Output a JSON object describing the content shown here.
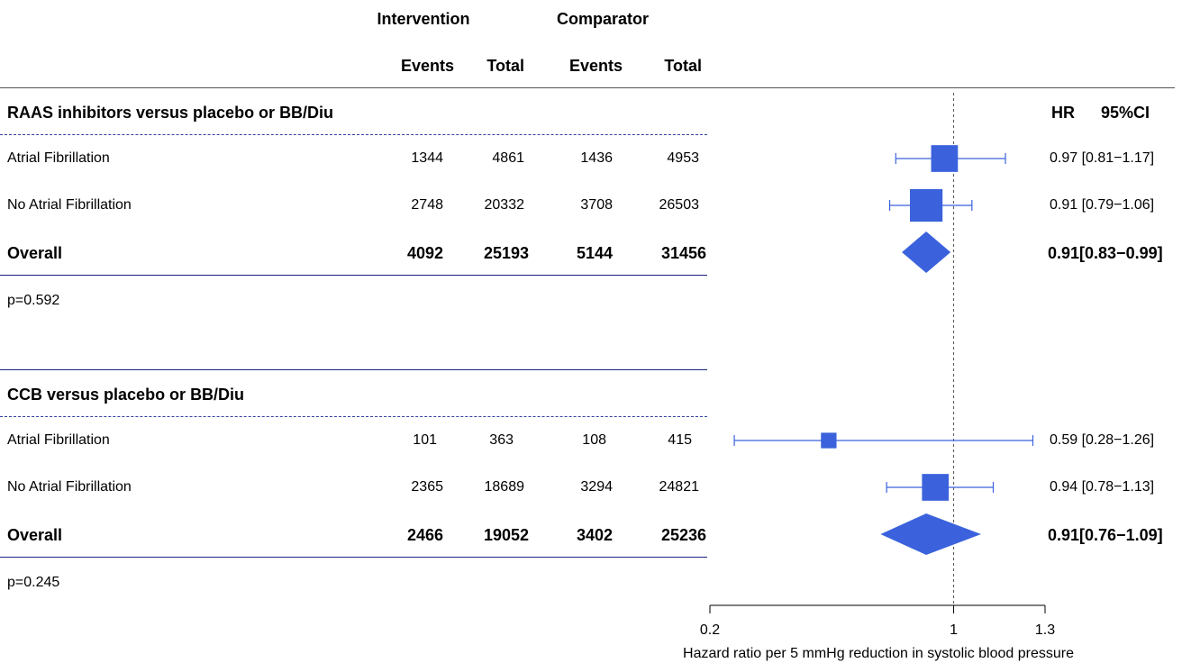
{
  "header": {
    "intervention": "Intervention",
    "comparator": "Comparator",
    "events": "Events",
    "total": "Total",
    "hr": "HR",
    "ci": "95%CI"
  },
  "groups": [
    {
      "title": "RAAS inhibitors versus placebo or BB/Diu",
      "rows": [
        {
          "label": "Atrial Fibrillation",
          "int_events": "1344",
          "int_total": "4861",
          "comp_events": "1436",
          "comp_total": "4953",
          "hr_text": "0.97 [0.81−1.17]"
        },
        {
          "label": "No Atrial Fibrillation",
          "int_events": "2748",
          "int_total": "20332",
          "comp_events": "3708",
          "comp_total": "26503",
          "hr_text": "0.91 [0.79−1.06]"
        }
      ],
      "overall": {
        "label": "Overall",
        "int_events": "4092",
        "int_total": "25193",
        "comp_events": "5144",
        "comp_total": "31456",
        "hr_text": "0.91[0.83−0.99]"
      },
      "p": "p=0.592"
    },
    {
      "title": "CCB versus placebo or BB/Diu",
      "rows": [
        {
          "label": "Atrial Fibrillation",
          "int_events": "101",
          "int_total": "363",
          "comp_events": "108",
          "comp_total": "415",
          "hr_text": "0.59 [0.28−1.26]"
        },
        {
          "label": "No Atrial Fibrillation",
          "int_events": "2365",
          "int_total": "18689",
          "comp_events": "3294",
          "comp_total": "24821",
          "hr_text": "0.94 [0.78−1.13]"
        }
      ],
      "overall": {
        "label": "Overall",
        "int_events": "2466",
        "int_total": "19052",
        "comp_events": "3402",
        "comp_total": "25236",
        "hr_text": "0.91[0.76−1.09]"
      },
      "p": "p=0.245"
    }
  ],
  "chart_data": {
    "type": "forest",
    "xlabel": "Hazard ratio per 5 mmHg reduction in systolic blood pressure",
    "xlim": [
      0.2,
      1.3
    ],
    "ticks": [
      {
        "value": 0.2,
        "label": "0.2"
      },
      {
        "value": 1,
        "label": "1"
      },
      {
        "value": 1.3,
        "label": "1.3"
      }
    ],
    "reference_line": 1,
    "color": "#3b62dc",
    "groups": [
      {
        "rows": [
          {
            "hr": 0.97,
            "lo": 0.81,
            "hi": 1.17,
            "weight": 0.55
          },
          {
            "hr": 0.91,
            "lo": 0.79,
            "hi": 1.06,
            "weight": 0.67
          }
        ],
        "overall": {
          "hr": 0.91,
          "lo": 0.83,
          "hi": 0.99
        }
      },
      {
        "rows": [
          {
            "hr": 0.59,
            "lo": 0.28,
            "hi": 1.26,
            "weight": 0.32
          },
          {
            "hr": 0.94,
            "lo": 0.78,
            "hi": 1.13,
            "weight": 0.55
          }
        ],
        "overall": {
          "hr": 0.91,
          "lo": 0.76,
          "hi": 1.09
        }
      }
    ]
  }
}
